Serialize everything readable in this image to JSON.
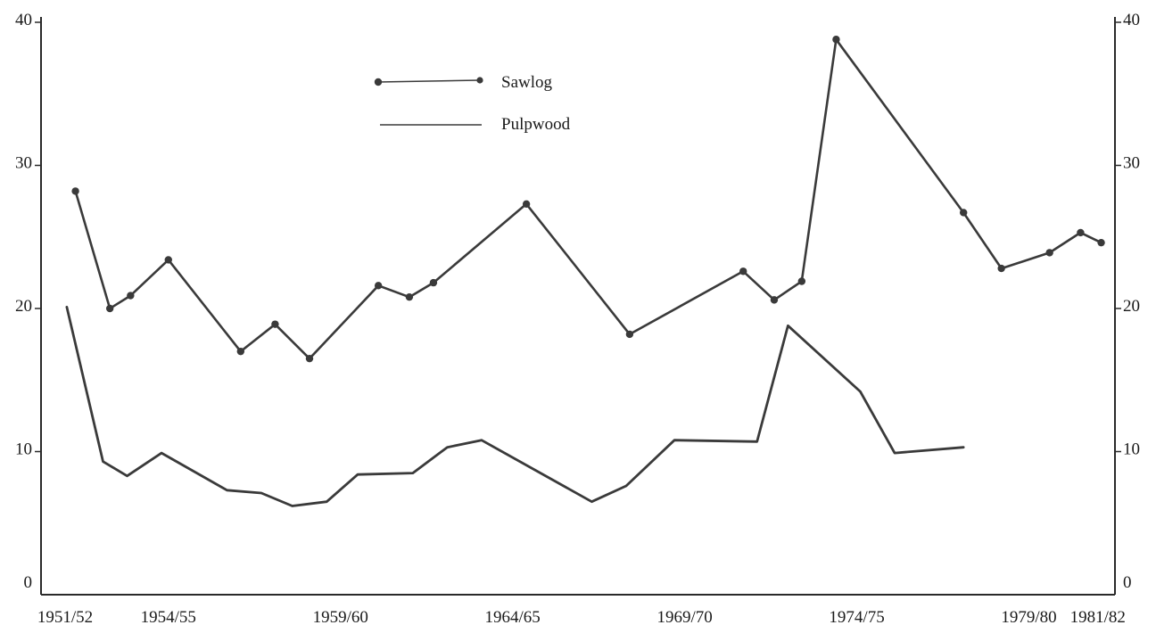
{
  "chart_data": {
    "type": "line",
    "title": "",
    "xlabel": "",
    "ylabel": "",
    "ylim": [
      0,
      40
    ],
    "y_ticks": [
      0,
      10,
      20,
      30,
      40
    ],
    "y_ticks_right": [
      0,
      10,
      20,
      30,
      40
    ],
    "x_range": [
      1950.8,
      1982.0
    ],
    "x_tick_labels": [
      {
        "x": 1951.5,
        "label": "1951/52"
      },
      {
        "x": 1954.5,
        "label": "1954/55"
      },
      {
        "x": 1959.5,
        "label": "1959/60"
      },
      {
        "x": 1964.5,
        "label": "1964/65"
      },
      {
        "x": 1969.5,
        "label": "1969/70"
      },
      {
        "x": 1974.5,
        "label": "1974/75"
      },
      {
        "x": 1979.5,
        "label": "1979/80"
      },
      {
        "x": 1981.5,
        "label": "1981/82"
      }
    ],
    "grid": false,
    "legend_position": "top-left",
    "series": [
      {
        "name": "Sawlog",
        "marker": "dot",
        "color": "#3a3a3a",
        "points": [
          [
            1951.8,
            28.2
          ],
          [
            1952.8,
            20.0
          ],
          [
            1953.4,
            20.9
          ],
          [
            1954.5,
            23.4
          ],
          [
            1956.6,
            17.0
          ],
          [
            1957.6,
            18.9
          ],
          [
            1958.6,
            16.5
          ],
          [
            1960.6,
            21.6
          ],
          [
            1961.5,
            20.8
          ],
          [
            1962.2,
            21.8
          ],
          [
            1964.9,
            27.3
          ],
          [
            1967.9,
            18.2
          ],
          [
            1971.2,
            22.6
          ],
          [
            1972.1,
            20.6
          ],
          [
            1972.9,
            21.9
          ],
          [
            1973.9,
            38.8
          ],
          [
            1977.6,
            26.7
          ],
          [
            1978.7,
            22.8
          ],
          [
            1980.1,
            23.9
          ],
          [
            1981.0,
            25.3
          ],
          [
            1981.6,
            24.6
          ]
        ]
      },
      {
        "name": "Pulpwood",
        "marker": "none",
        "color": "#3a3a3a",
        "points": [
          [
            1951.55,
            20.1
          ],
          [
            1952.6,
            9.3
          ],
          [
            1953.3,
            8.3
          ],
          [
            1954.3,
            9.9
          ],
          [
            1956.2,
            7.3
          ],
          [
            1957.2,
            7.1
          ],
          [
            1958.1,
            6.2
          ],
          [
            1959.1,
            6.5
          ],
          [
            1960.0,
            8.4
          ],
          [
            1961.6,
            8.5
          ],
          [
            1962.6,
            10.3
          ],
          [
            1963.6,
            10.8
          ],
          [
            1966.8,
            6.5
          ],
          [
            1967.8,
            7.6
          ],
          [
            1969.2,
            10.8
          ],
          [
            1971.6,
            10.7
          ],
          [
            1972.5,
            18.8
          ],
          [
            1974.6,
            14.2
          ],
          [
            1975.6,
            9.9
          ],
          [
            1977.6,
            10.3
          ]
        ]
      }
    ]
  }
}
